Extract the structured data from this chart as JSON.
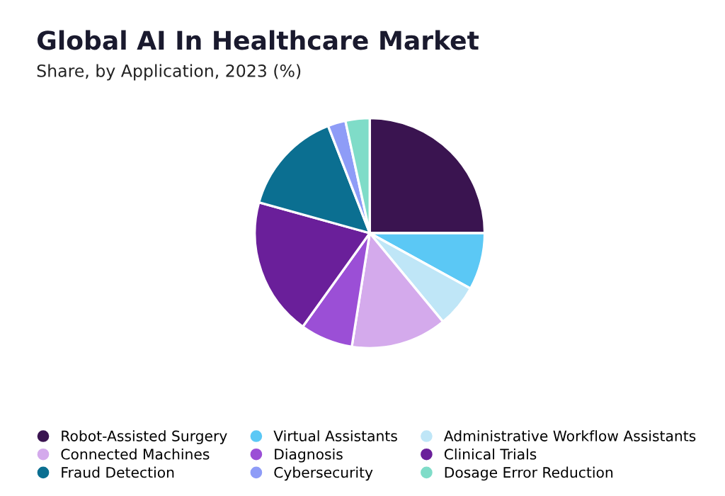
{
  "chart_data": {
    "type": "pie",
    "title": "Global AI In Healthcare Market",
    "subtitle": "Share, by Application, 2023 (%)",
    "categories": [
      "Robot-Assisted Surgery",
      "Virtual Assistants",
      "Administrative Workflow Assistants",
      "Connected Machines",
      "Diagnosis",
      "Clinical Trials",
      "Fraud Detection",
      "Cybersecurity",
      "Dosage Error Reduction"
    ],
    "values": [
      25,
      8,
      6,
      13.5,
      7.4,
      19.4,
      14.8,
      2.5,
      3.4
    ],
    "colors": [
      "#3a1450",
      "#5bc8f5",
      "#bfe6f7",
      "#d4aaec",
      "#9b4fd6",
      "#6a1f9a",
      "#0b6f91",
      "#8e9cf7",
      "#7fdcc8"
    ],
    "legend": "bottom"
  }
}
